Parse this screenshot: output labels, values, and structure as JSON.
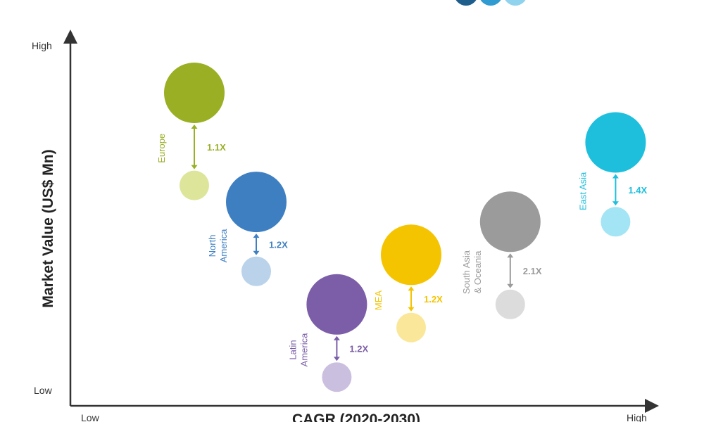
{
  "chart_data": {
    "type": "bubble",
    "title": "",
    "xlabel": "CAGR (2020-2030)",
    "ylabel": "Market Value (US$ Mn)",
    "x_ticks": {
      "low": "Low",
      "high": "High"
    },
    "y_ticks": {
      "low": "Low",
      "high": "High"
    },
    "grid": false,
    "legend": "top (partially cropped)",
    "legend_colors": [
      "#1d5e8c",
      "#2f9bd1",
      "#8fd3ee"
    ],
    "series": [
      {
        "region_lines": [
          "Europe"
        ],
        "multiplier": "1.1X",
        "color": "#9aaf24",
        "color_light": "#dde59a",
        "x": 2,
        "y_large": 9,
        "y_small": 6.2
      },
      {
        "region_lines": [
          "North",
          "America"
        ],
        "multiplier": "1.2X",
        "color": "#3e7fc2",
        "color_light": "#bad3ea",
        "x": 3,
        "y_large": 5.7,
        "y_small": 3.6
      },
      {
        "region_lines": [
          "Latin",
          "America"
        ],
        "multiplier": "1.2X",
        "color": "#7b5ea7",
        "color_light": "#cbbfe0",
        "x": 4.3,
        "y_large": 2.6,
        "y_small": 0.4
      },
      {
        "region_lines": [
          "MEA"
        ],
        "multiplier": "1.2X",
        "color": "#f5c400",
        "color_light": "#fbe79a",
        "x": 5.5,
        "y_large": 4.1,
        "y_small": 1.9
      },
      {
        "region_lines": [
          "South Asia",
          "& Oceania"
        ],
        "multiplier": "2.1X",
        "color": "#9b9b9b",
        "color_light": "#dcdcdc",
        "x": 7.1,
        "y_large": 5.1,
        "y_small": 2.6
      },
      {
        "region_lines": [
          "East Asia"
        ],
        "multiplier": "1.4X",
        "color": "#1ebfdd",
        "color_light": "#a3e5f4",
        "x": 8.8,
        "y_large": 7.5,
        "y_small": 5.1
      }
    ]
  }
}
